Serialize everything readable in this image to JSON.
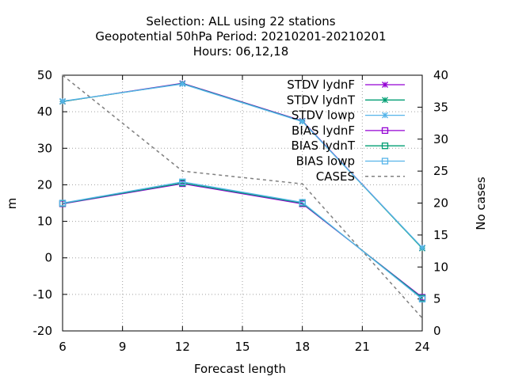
{
  "chart_data": {
    "type": "line",
    "title_lines": [
      "Selection: ALL using    22 stations",
      "Geopotential 50hPa   Period: 20210201-20210201",
      "Hours:  06,12,18"
    ],
    "xlabel": "Forecast length",
    "ylabel": "m",
    "y2label": "No cases",
    "xlim": [
      6,
      24
    ],
    "ylim": [
      -20,
      50
    ],
    "y2lim": [
      0,
      40
    ],
    "xticks": [
      6,
      9,
      12,
      15,
      18,
      21,
      24
    ],
    "yticks": [
      -20,
      -10,
      0,
      10,
      20,
      30,
      40,
      50
    ],
    "y2ticks": [
      0,
      5,
      10,
      15,
      20,
      25,
      30,
      35,
      40
    ],
    "grid": true,
    "legend_position": "top-right",
    "series": [
      {
        "name": "STDV lydnF",
        "axis": "y",
        "color": "#9400d3",
        "marker": "star",
        "dash": "",
        "x": [
          6,
          12,
          18,
          24
        ],
        "values": [
          42.8,
          47.8,
          37.5,
          2.7
        ]
      },
      {
        "name": "STDV lydnT",
        "axis": "y",
        "color": "#009e73",
        "marker": "star",
        "dash": "",
        "x": [
          6,
          12,
          18,
          24
        ],
        "values": [
          42.8,
          47.7,
          37.4,
          2.6
        ]
      },
      {
        "name": "STDV lowp",
        "axis": "y",
        "color": "#56b4e9",
        "marker": "star",
        "dash": "",
        "x": [
          6,
          12,
          18,
          24
        ],
        "values": [
          42.9,
          47.6,
          37.3,
          2.8
        ]
      },
      {
        "name": "BIAS lydnF",
        "axis": "y",
        "color": "#9400d3",
        "marker": "square",
        "dash": "",
        "x": [
          6,
          12,
          18,
          24
        ],
        "values": [
          14.8,
          20.3,
          14.8,
          -10.8
        ]
      },
      {
        "name": "BIAS lydnT",
        "axis": "y",
        "color": "#009e73",
        "marker": "square",
        "dash": "",
        "x": [
          6,
          12,
          18,
          24
        ],
        "values": [
          14.9,
          20.5,
          15.0,
          -11.0
        ]
      },
      {
        "name": "BIAS lowp",
        "axis": "y",
        "color": "#56b4e9",
        "marker": "square",
        "dash": "",
        "x": [
          6,
          12,
          18,
          24
        ],
        "values": [
          15.0,
          20.8,
          15.2,
          -11.3
        ]
      },
      {
        "name": "CASES",
        "axis": "y2",
        "color": "#808080",
        "marker": "none",
        "dash": "4,4",
        "x": [
          6,
          12,
          18,
          24
        ],
        "values": [
          40,
          25,
          23,
          2
        ]
      }
    ]
  }
}
